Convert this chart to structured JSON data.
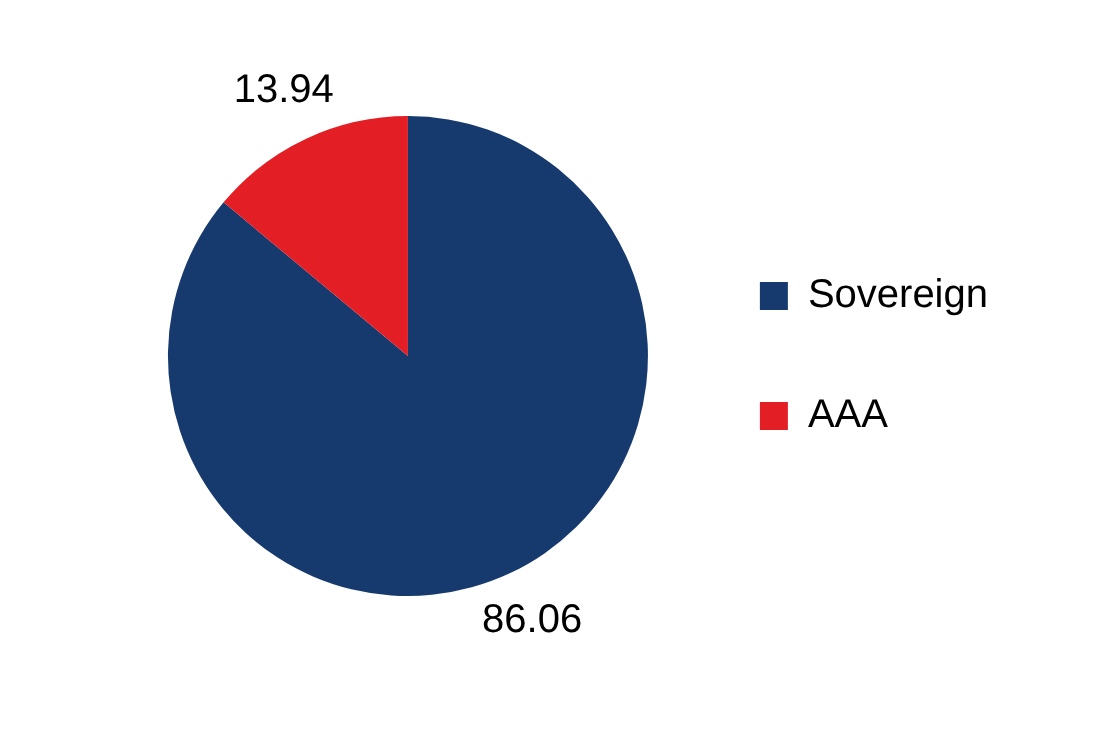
{
  "chart_data": {
    "type": "pie",
    "categories": [
      "Sovereign",
      "AAA"
    ],
    "values": [
      86.06,
      13.94
    ],
    "colors": [
      "#163a6e",
      "#e31e24"
    ],
    "data_labels": true,
    "legend": "right"
  }
}
